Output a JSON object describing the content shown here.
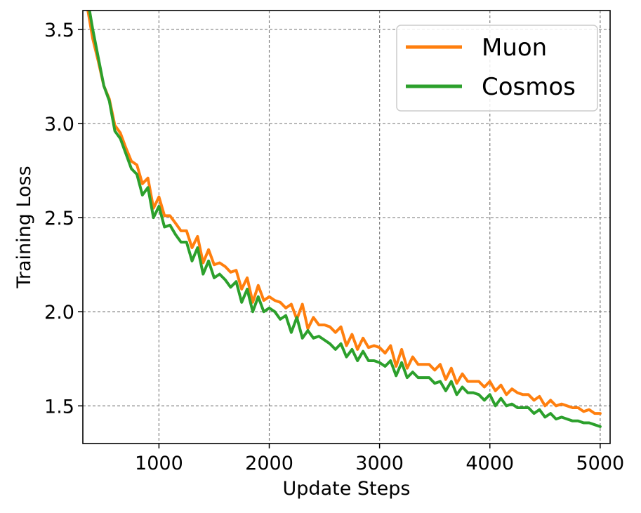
{
  "chart_data": {
    "type": "line",
    "title": "",
    "xlabel": "Update Steps",
    "ylabel": "Training Loss",
    "xlim": [
      310,
      5090
    ],
    "ylim": [
      1.3,
      3.6
    ],
    "xticks": [
      1000,
      2000,
      3000,
      4000,
      5000
    ],
    "yticks": [
      1.5,
      2.0,
      2.5,
      3.0,
      3.5
    ],
    "xtick_labels": [
      "1000",
      "2000",
      "3000",
      "4000",
      "5000"
    ],
    "ytick_labels": [
      "1.5",
      "2.0",
      "2.5",
      "3.0",
      "3.5"
    ],
    "grid": true,
    "legend_position": "top-right",
    "series": [
      {
        "name": "Muon",
        "color": "#ff7f0e",
        "x": [
          300,
          350,
          400,
          450,
          500,
          550,
          600,
          650,
          700,
          750,
          800,
          850,
          900,
          950,
          1000,
          1050,
          1100,
          1150,
          1200,
          1250,
          1300,
          1350,
          1400,
          1450,
          1500,
          1550,
          1600,
          1650,
          1700,
          1750,
          1800,
          1850,
          1900,
          1950,
          2000,
          2050,
          2100,
          2150,
          2200,
          2250,
          2300,
          2350,
          2400,
          2450,
          2500,
          2550,
          2600,
          2650,
          2700,
          2750,
          2800,
          2850,
          2900,
          2950,
          3000,
          3050,
          3100,
          3150,
          3200,
          3250,
          3300,
          3350,
          3400,
          3450,
          3500,
          3550,
          3600,
          3650,
          3700,
          3750,
          3800,
          3850,
          3900,
          3950,
          4000,
          4050,
          4100,
          4150,
          4200,
          4250,
          4300,
          4350,
          4400,
          4450,
          4500,
          4550,
          4600,
          4650,
          4700,
          4750,
          4800,
          4850,
          4900,
          4950,
          5000
        ],
        "values": [
          3.8,
          3.62,
          3.45,
          3.33,
          3.2,
          3.13,
          2.99,
          2.95,
          2.87,
          2.8,
          2.78,
          2.68,
          2.71,
          2.55,
          2.61,
          2.51,
          2.51,
          2.47,
          2.43,
          2.43,
          2.34,
          2.4,
          2.26,
          2.33,
          2.25,
          2.26,
          2.24,
          2.21,
          2.22,
          2.12,
          2.18,
          2.05,
          2.14,
          2.06,
          2.08,
          2.06,
          2.05,
          2.02,
          2.04,
          1.96,
          2.04,
          1.91,
          1.97,
          1.93,
          1.93,
          1.92,
          1.89,
          1.92,
          1.82,
          1.88,
          1.8,
          1.86,
          1.81,
          1.82,
          1.81,
          1.78,
          1.82,
          1.71,
          1.8,
          1.7,
          1.76,
          1.72,
          1.72,
          1.72,
          1.69,
          1.72,
          1.64,
          1.7,
          1.62,
          1.67,
          1.63,
          1.63,
          1.63,
          1.6,
          1.63,
          1.58,
          1.61,
          1.56,
          1.59,
          1.57,
          1.56,
          1.56,
          1.53,
          1.55,
          1.5,
          1.53,
          1.5,
          1.51,
          1.5,
          1.49,
          1.49,
          1.47,
          1.48,
          1.46,
          1.46
        ]
      },
      {
        "name": "Cosmos",
        "color": "#2ca02c",
        "x": [
          300,
          350,
          400,
          450,
          500,
          550,
          600,
          650,
          700,
          750,
          800,
          850,
          900,
          950,
          1000,
          1050,
          1100,
          1150,
          1200,
          1250,
          1300,
          1350,
          1400,
          1450,
          1500,
          1550,
          1600,
          1650,
          1700,
          1750,
          1800,
          1850,
          1900,
          1950,
          2000,
          2050,
          2100,
          2150,
          2200,
          2250,
          2300,
          2350,
          2400,
          2450,
          2500,
          2550,
          2600,
          2650,
          2700,
          2750,
          2800,
          2850,
          2900,
          2950,
          3000,
          3050,
          3100,
          3150,
          3200,
          3250,
          3300,
          3350,
          3400,
          3450,
          3500,
          3550,
          3600,
          3650,
          3700,
          3750,
          3800,
          3850,
          3900,
          3950,
          4000,
          4050,
          4100,
          4150,
          4200,
          4250,
          4300,
          4350,
          4400,
          4450,
          4500,
          4550,
          4600,
          4650,
          4700,
          4750,
          4800,
          4850,
          4900,
          4950,
          5000
        ],
        "values": [
          3.85,
          3.67,
          3.5,
          3.35,
          3.2,
          3.12,
          2.96,
          2.92,
          2.84,
          2.76,
          2.73,
          2.62,
          2.66,
          2.5,
          2.56,
          2.45,
          2.46,
          2.41,
          2.37,
          2.37,
          2.27,
          2.34,
          2.2,
          2.27,
          2.18,
          2.2,
          2.17,
          2.13,
          2.16,
          2.05,
          2.12,
          2.0,
          2.08,
          2.0,
          2.02,
          2.0,
          1.96,
          1.98,
          1.89,
          1.97,
          1.86,
          1.9,
          1.86,
          1.87,
          1.85,
          1.83,
          1.8,
          1.83,
          1.76,
          1.8,
          1.74,
          1.79,
          1.74,
          1.74,
          1.73,
          1.71,
          1.74,
          1.66,
          1.73,
          1.65,
          1.68,
          1.65,
          1.65,
          1.65,
          1.62,
          1.63,
          1.58,
          1.63,
          1.56,
          1.6,
          1.57,
          1.57,
          1.56,
          1.53,
          1.56,
          1.5,
          1.54,
          1.5,
          1.51,
          1.49,
          1.49,
          1.49,
          1.46,
          1.48,
          1.44,
          1.46,
          1.43,
          1.44,
          1.43,
          1.42,
          1.42,
          1.41,
          1.41,
          1.4,
          1.39
        ]
      }
    ]
  }
}
